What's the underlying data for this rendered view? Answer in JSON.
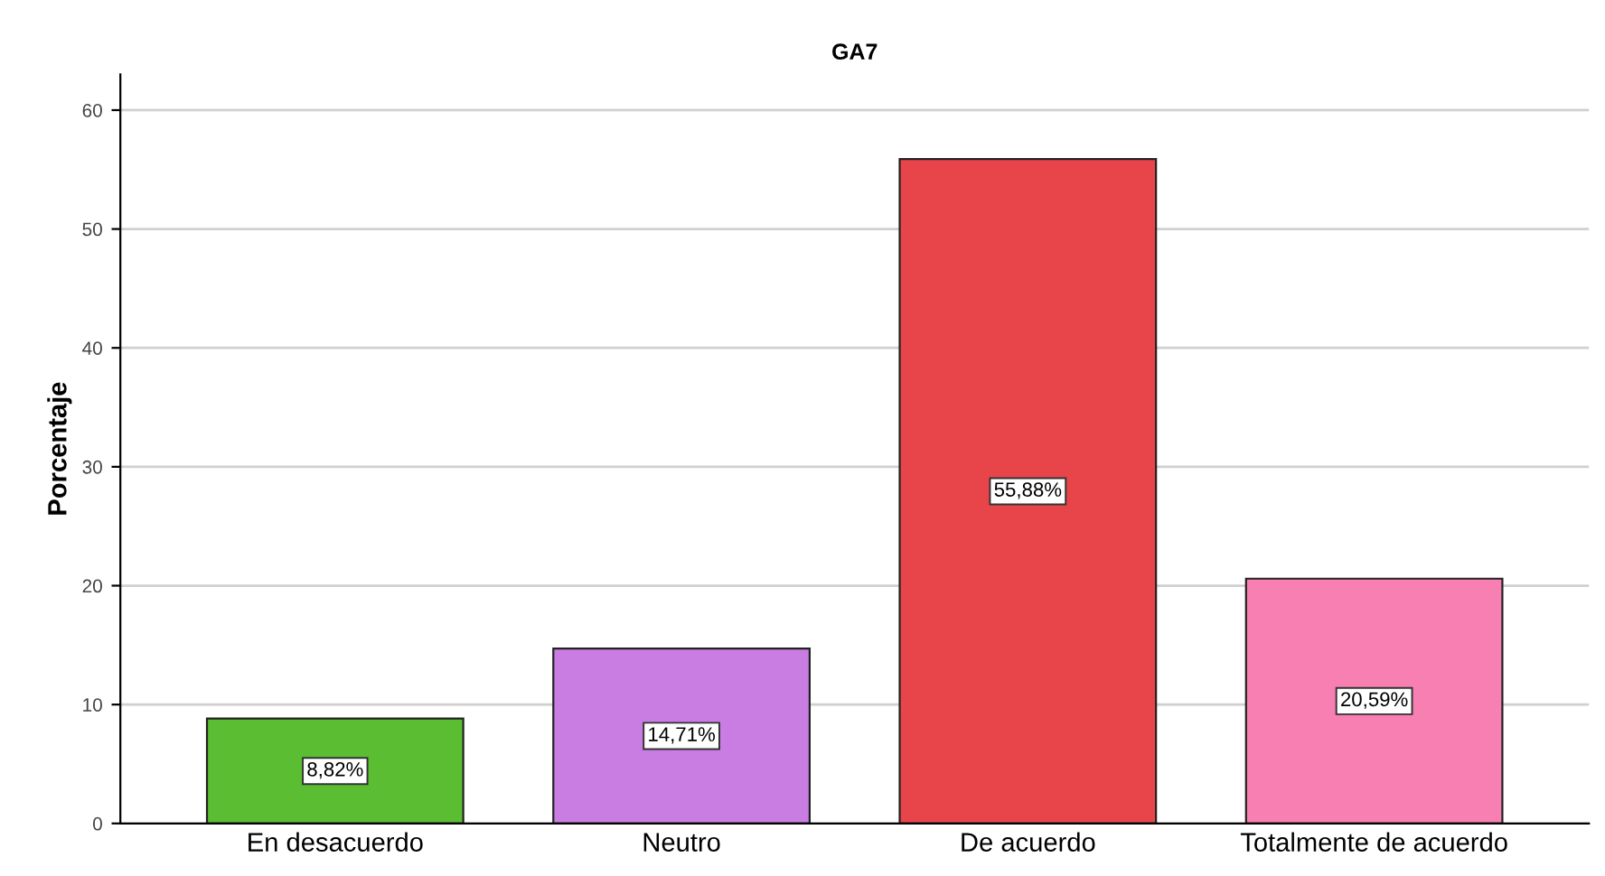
{
  "chart_data": {
    "type": "bar",
    "title": "GA7",
    "ylabel": "Porcentaje",
    "categories": [
      "En desacuerdo",
      "Neutro",
      "De acuerdo",
      "Totalmente de acuerdo"
    ],
    "values": [
      8.82,
      14.71,
      55.88,
      20.59
    ],
    "value_labels": [
      "8,82%",
      "14,71%",
      "55,88%",
      "20,59%"
    ],
    "colors": [
      "#5bbd32",
      "#c97de3",
      "#e8454b",
      "#f77fb1"
    ],
    "ylim": [
      0,
      63
    ],
    "yticks": [
      0,
      10,
      20,
      30,
      40,
      50,
      60
    ],
    "grid": "y",
    "legend": false
  }
}
